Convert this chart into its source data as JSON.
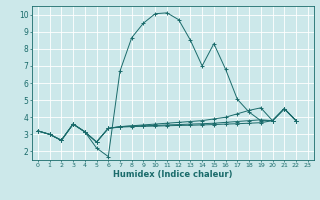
{
  "xlabel": "Humidex (Indice chaleur)",
  "xlim": [
    -0.5,
    23.5
  ],
  "ylim": [
    1.5,
    10.5
  ],
  "yticks": [
    2,
    3,
    4,
    5,
    6,
    7,
    8,
    9,
    10
  ],
  "xticks": [
    0,
    1,
    2,
    3,
    4,
    5,
    6,
    7,
    8,
    9,
    10,
    11,
    12,
    13,
    14,
    15,
    16,
    17,
    18,
    19,
    20,
    21,
    22,
    23
  ],
  "bg_color": "#cce8ea",
  "line_color": "#1a6b6b",
  "grid_color": "#ffffff",
  "lines": [
    {
      "x": [
        0,
        1,
        2,
        3,
        4,
        5,
        6,
        7,
        8,
        9,
        10,
        11,
        12,
        13,
        14,
        15,
        16,
        17,
        18,
        19,
        20,
        21,
        22
      ],
      "y": [
        3.2,
        3.0,
        2.65,
        3.6,
        3.15,
        2.2,
        1.7,
        6.7,
        8.65,
        9.5,
        10.05,
        10.1,
        9.7,
        8.5,
        7.0,
        8.3,
        6.8,
        5.05,
        4.3,
        3.8,
        3.8,
        4.5,
        3.8
      ]
    },
    {
      "x": [
        0,
        1,
        2,
        3,
        4,
        5,
        6,
        7,
        8,
        9,
        10,
        11,
        12,
        13,
        14,
        15,
        16,
        17,
        18,
        19,
        20,
        21,
        22
      ],
      "y": [
        3.2,
        3.0,
        2.65,
        3.6,
        3.15,
        2.55,
        3.35,
        3.45,
        3.5,
        3.55,
        3.6,
        3.65,
        3.7,
        3.75,
        3.8,
        3.9,
        4.0,
        4.2,
        4.4,
        4.55,
        3.8,
        4.5,
        3.8
      ]
    },
    {
      "x": [
        0,
        1,
        2,
        3,
        4,
        5,
        6,
        7,
        8,
        9,
        10,
        11,
        12,
        13,
        14,
        15,
        16,
        17,
        18,
        19,
        20,
        21,
        22
      ],
      "y": [
        3.2,
        3.0,
        2.65,
        3.6,
        3.15,
        2.55,
        3.35,
        3.45,
        3.48,
        3.5,
        3.52,
        3.55,
        3.57,
        3.6,
        3.62,
        3.65,
        3.7,
        3.75,
        3.8,
        3.85,
        3.8,
        4.5,
        3.8
      ]
    },
    {
      "x": [
        0,
        1,
        2,
        3,
        4,
        5,
        6,
        7,
        8,
        9,
        10,
        11,
        12,
        13,
        14,
        15,
        16,
        17,
        18,
        19,
        20,
        21,
        22
      ],
      "y": [
        3.2,
        3.0,
        2.65,
        3.6,
        3.15,
        2.55,
        3.35,
        3.42,
        3.45,
        3.47,
        3.48,
        3.5,
        3.52,
        3.53,
        3.55,
        3.57,
        3.6,
        3.62,
        3.65,
        3.68,
        3.8,
        4.5,
        3.8
      ]
    }
  ]
}
